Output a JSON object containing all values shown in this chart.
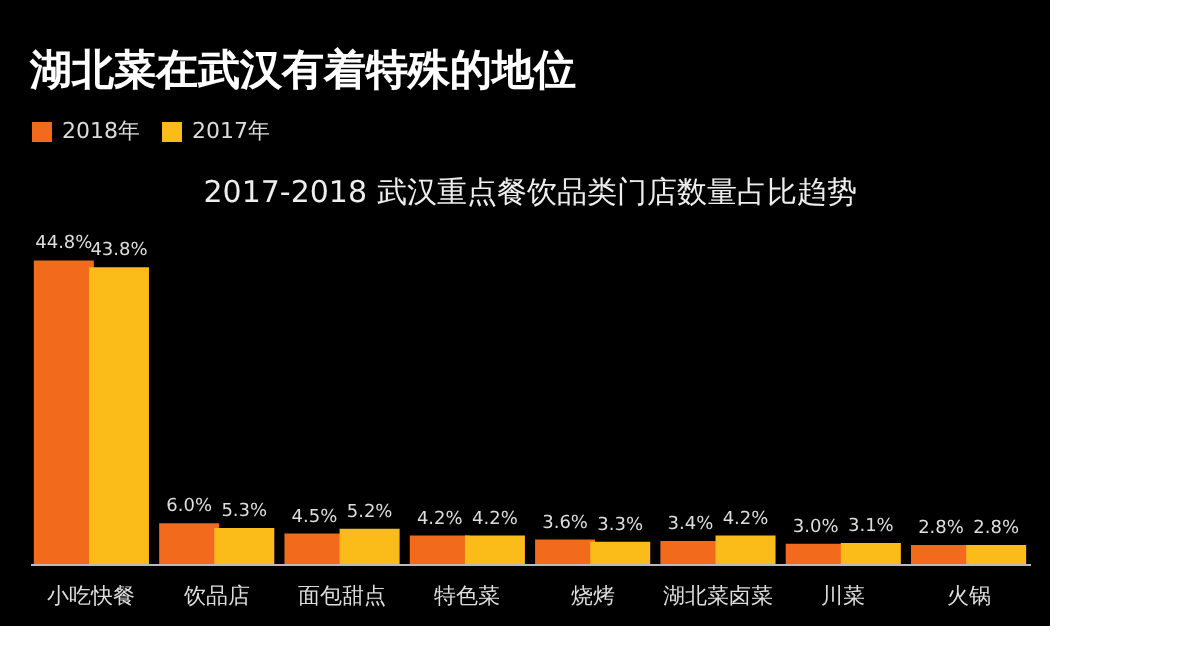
{
  "chart_data": {
    "type": "bar",
    "title": "湖北菜在武汉有着特殊的地位",
    "subtitle": "2017-2018 武汉重点餐饮品类门店数量占比趋势",
    "categories": [
      "小吃快餐",
      "饮品店",
      "面包甜点",
      "特色菜",
      "烧烤",
      "湖北菜卤菜",
      "川菜",
      "火锅"
    ],
    "series": [
      {
        "name": "2018年",
        "color": "#f26b1d",
        "values": [
          44.8,
          6.0,
          4.5,
          4.2,
          3.6,
          3.4,
          3.0,
          2.8
        ],
        "value_labels": [
          "44.8%",
          "6.0%",
          "4.5%",
          "4.2%",
          "3.6%",
          "3.4%",
          "3.0%",
          "2.8%"
        ]
      },
      {
        "name": "2017年",
        "color": "#fbbb18",
        "values": [
          43.8,
          5.3,
          5.2,
          4.2,
          3.3,
          4.2,
          3.1,
          2.8
        ],
        "value_labels": [
          "43.8%",
          "5.3%",
          "5.2%",
          "4.2%",
          "3.3%",
          "4.2%",
          "3.1%",
          "2.8%"
        ]
      }
    ],
    "legend": "top",
    "grid": false
  }
}
